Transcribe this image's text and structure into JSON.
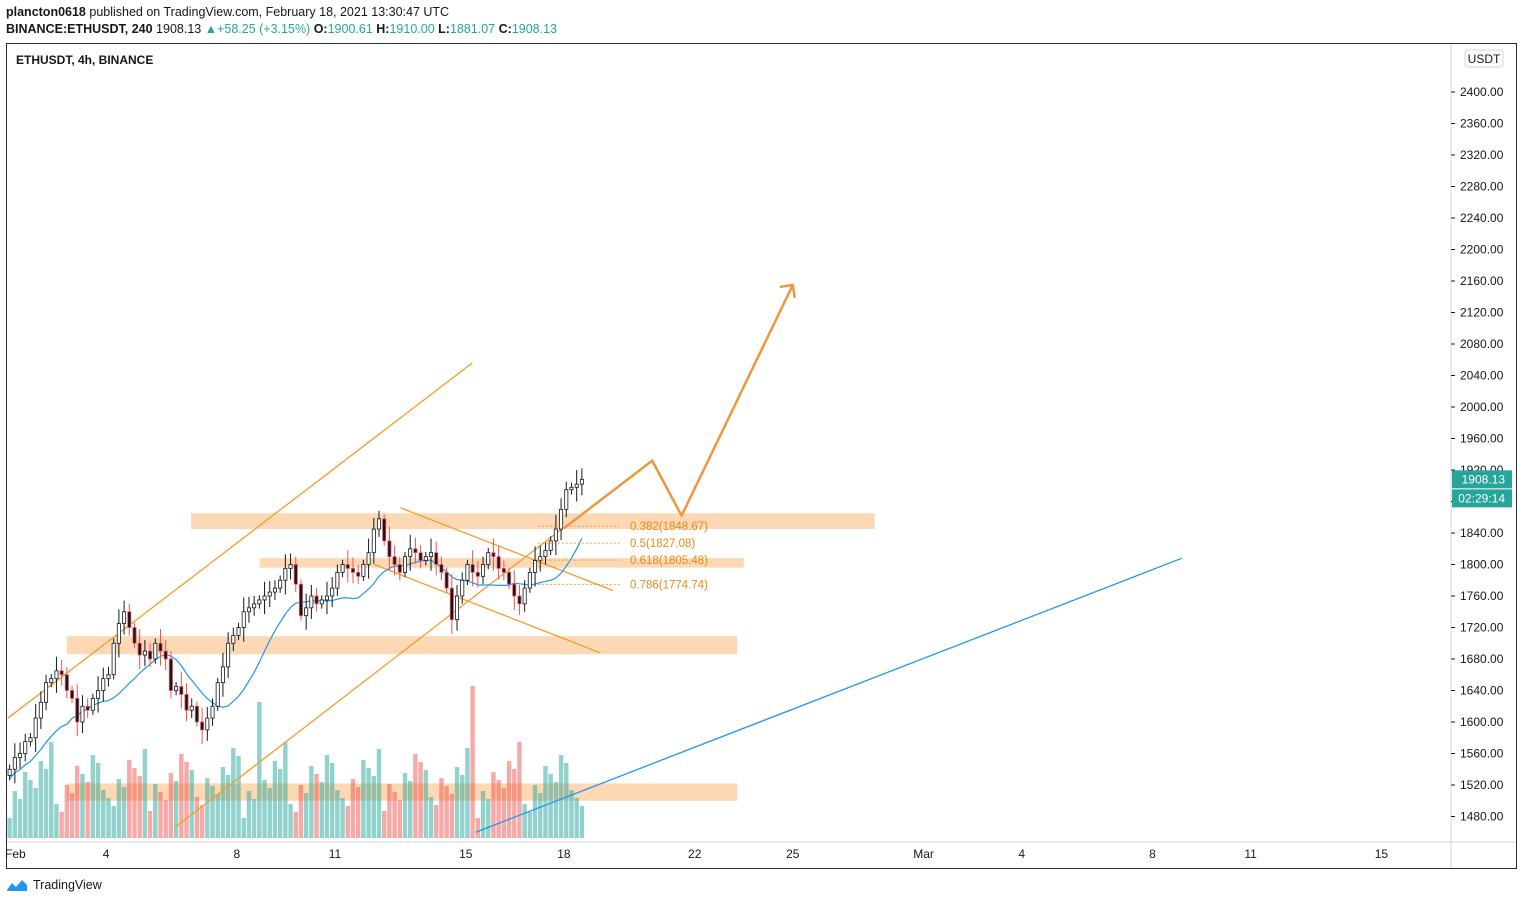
{
  "header": {
    "author": "plancton0618",
    "published_text": " published on TradingView.com, February 18, 2021 13:30:47 UTC",
    "symbol_line": "BINANCE:ETHUSDT, 240",
    "last": "1908.13",
    "change": "+58.25 (+3.15%)",
    "o_label": "O:",
    "o_val": "1900.61",
    "h_label": "H:",
    "h_val": "1910.00",
    "l_label": "L:",
    "l_val": "1881.07",
    "c_label": "C:",
    "c_val": "1908.13"
  },
  "chart_title": "ETHUSDT, 4h, BINANCE",
  "currency_badge": "USDT",
  "price_tag": "1908.13",
  "countdown_tag": "02:29:14",
  "footer_brand": "TradingView",
  "colors": {
    "up": "#26a69a",
    "down": "#ef5350",
    "orange": "#f59c2b",
    "zone": "#fcd4ad",
    "blue": "#2196f3",
    "candle": "#131722"
  },
  "chart_data": {
    "type": "candlestick",
    "symbol": "ETHUSDT",
    "interval": "4h",
    "exchange": "BINANCE",
    "ylim": [
      1460,
      2440
    ],
    "y_ticks": [
      "2400.00",
      "2360.00",
      "2320.00",
      "2280.00",
      "2240.00",
      "2200.00",
      "2160.00",
      "2120.00",
      "2080.00",
      "2040.00",
      "2000.00",
      "1960.00",
      "1920.00",
      "1880.00",
      "1840.00",
      "1800.00",
      "1760.00",
      "1720.00",
      "1680.00",
      "1640.00",
      "1600.00",
      "1560.00",
      "1520.00",
      "1480.00"
    ],
    "x_ticks": [
      "Feb",
      "4",
      "8",
      "11",
      "15",
      "18",
      "22",
      "25",
      "Mar",
      "4",
      "8",
      "11",
      "15"
    ],
    "x_tick_days": [
      1,
      4,
      8,
      11,
      15,
      18,
      22,
      25,
      29,
      32,
      36,
      39,
      43
    ],
    "xlim_days": [
      1,
      45
    ],
    "candles_close": [
      1540,
      1555,
      1560,
      1575,
      1580,
      1605,
      1625,
      1650,
      1655,
      1665,
      1660,
      1640,
      1630,
      1600,
      1620,
      1615,
      1630,
      1640,
      1655,
      1660,
      1700,
      1725,
      1740,
      1720,
      1700,
      1685,
      1690,
      1680,
      1700,
      1690,
      1680,
      1640,
      1645,
      1635,
      1615,
      1620,
      1600,
      1590,
      1605,
      1620,
      1650,
      1670,
      1700,
      1710,
      1720,
      1740,
      1745,
      1750,
      1755,
      1760,
      1765,
      1770,
      1780,
      1795,
      1800,
      1775,
      1735,
      1745,
      1760,
      1750,
      1755,
      1760,
      1770,
      1790,
      1800,
      1795,
      1790,
      1785,
      1800,
      1815,
      1845,
      1858,
      1830,
      1810,
      1800,
      1790,
      1810,
      1820,
      1815,
      1805,
      1810,
      1815,
      1800,
      1790,
      1770,
      1730,
      1760,
      1780,
      1800,
      1790,
      1785,
      1800,
      1815,
      1810,
      1795,
      1790,
      1775,
      1760,
      1750,
      1770,
      1790,
      1805,
      1810,
      1818,
      1830,
      1845,
      1870,
      1895,
      1898,
      1902,
      1908.13
    ],
    "volume_up_pattern": "alternating",
    "fibonacci_levels": [
      {
        "label": "0.382(1848.67)",
        "ratio": 0.382,
        "price": 1848.67
      },
      {
        "label": "0.5(1827.08)",
        "ratio": 0.5,
        "price": 1827.08
      },
      {
        "label": "0.618(1805.48)",
        "ratio": 0.618,
        "price": 1805.48
      },
      {
        "label": "0.786(1774.74)",
        "ratio": 0.786,
        "price": 1774.74
      }
    ],
    "zones": [
      {
        "from_day": 6.6,
        "to_day": 27.5,
        "low": 1845,
        "high": 1865
      },
      {
        "from_day": 8.7,
        "to_day": 23.5,
        "low": 1796,
        "high": 1808
      },
      {
        "from_day": 2.8,
        "to_day": 23.3,
        "low": 1686,
        "high": 1709
      },
      {
        "from_day": 2.8,
        "to_day": 23.3,
        "low": 1500,
        "high": 1522
      }
    ],
    "trendlines": [
      {
        "name": "upper channel",
        "p1": [
          1,
          1605
        ],
        "p2": [
          15.2,
          2056
        ],
        "color": "orange"
      },
      {
        "name": "lower channel",
        "p1": [
          6.1,
          1466
        ],
        "p2": [
          17.9,
          1844
        ],
        "color": "orange"
      },
      {
        "name": "flag top",
        "p1": [
          13,
          1872
        ],
        "p2": [
          19.5,
          1767
        ],
        "color": "orange"
      },
      {
        "name": "flag bottom",
        "p1": [
          12.2,
          1800
        ],
        "p2": [
          19.1,
          1688
        ],
        "color": "orange"
      },
      {
        "name": "support",
        "p1": [
          15.3,
          1460
        ],
        "p2": [
          36.9,
          1808
        ],
        "color": "blue"
      }
    ],
    "projection_path": [
      [
        18,
        1846
      ],
      [
        20.7,
        1932
      ],
      [
        21.6,
        1862
      ],
      [
        25,
        2155
      ]
    ],
    "last_price": 1908.13
  }
}
